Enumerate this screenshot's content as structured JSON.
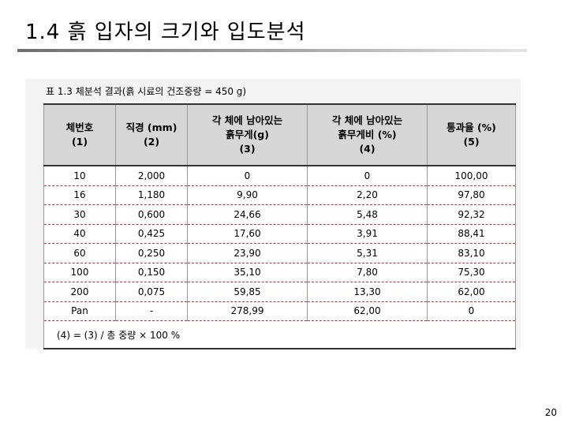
{
  "slide": {
    "title": "1.4 흙 입자의 크기와 입도분석",
    "page_number": "20"
  },
  "table": {
    "caption": "표  1.3   체분석  결과(흙  시료의  건조중량 = 450 g)",
    "headers": [
      {
        "line1": "체번호",
        "line2": "(1)"
      },
      {
        "line1": "직경 (mm)",
        "line2": "(2)"
      },
      {
        "line1": "각 체에 남아있는",
        "line2": "흙무게(g)",
        "line3": "(3)"
      },
      {
        "line1": "각 체에 남아있는",
        "line2": "흙무게비 (%)",
        "line3": "(4)"
      },
      {
        "line1": "통과율 (%)",
        "line2": "(5)"
      }
    ],
    "rows": [
      [
        "10",
        "2,000",
        "0",
        "0",
        "100,00"
      ],
      [
        "16",
        "1,180",
        "9,90",
        "2,20",
        "97,80"
      ],
      [
        "30",
        "0,600",
        "24,66",
        "5,48",
        "92,32"
      ],
      [
        "40",
        "0,425",
        "17,60",
        "3,91",
        "88,41"
      ],
      [
        "60",
        "0,250",
        "23,90",
        "5,31",
        "83,10"
      ],
      [
        "100",
        "0,150",
        "35,10",
        "7,80",
        "75,30"
      ],
      [
        "200",
        "0,075",
        "59,85",
        "13,30",
        "62,00"
      ],
      [
        "Pan",
        "-",
        "278,99",
        "62,00",
        "0"
      ]
    ],
    "footnote": "(4) = (3) / 총  중량 × 100 %"
  }
}
